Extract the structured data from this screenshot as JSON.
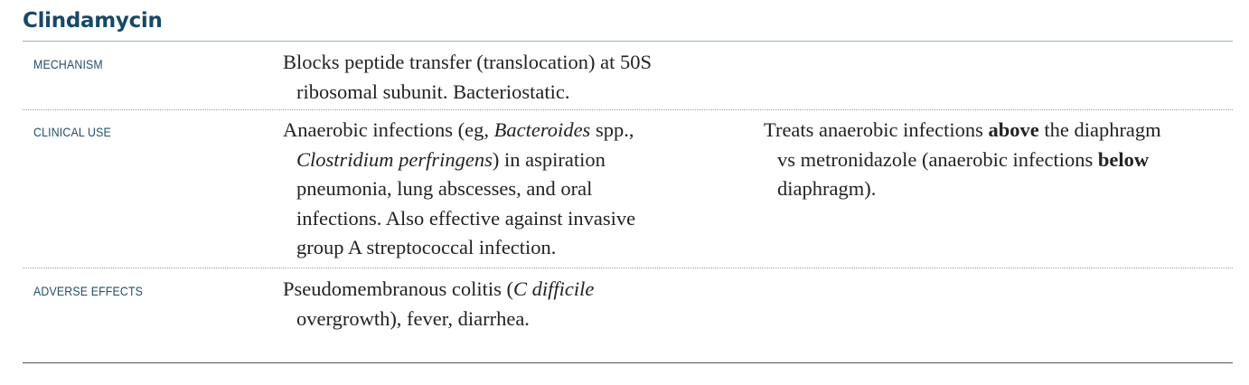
{
  "title": "Clindamycin",
  "rows": [
    {
      "label": "MECHANISM",
      "col1": [
        "Blocks peptide transfer (translocation) at 50S",
        "ribosomal subunit. Bacteriostatic."
      ]
    },
    {
      "label": "CLINICAL USE",
      "col1": {
        "l1_a": "Anaerobic infections (eg, ",
        "l1_b": "Bacteroides",
        "l1_c": " spp.,",
        "l2_a": "Clostridium perfringens",
        "l2_b": ") in aspiration",
        "l3": "pneumonia, lung abscesses, and oral",
        "l4": "infections. Also effective against invasive",
        "l5": "group A streptococcal infection."
      },
      "col2": {
        "l1_a": "Treats anaerobic infections ",
        "l1_b": "above",
        "l1_c": " the diaphragm",
        "l2_a": "vs metronidazole (anaerobic infections ",
        "l2_b": "below",
        "l3": "diaphragm)."
      }
    },
    {
      "label": "ADVERSE EFFECTS",
      "col1": {
        "l1_a": "Pseudomembranous colitis (",
        "l1_b": "C difficile",
        "l2": "overgrowth), fever, diarrhea."
      }
    }
  ]
}
